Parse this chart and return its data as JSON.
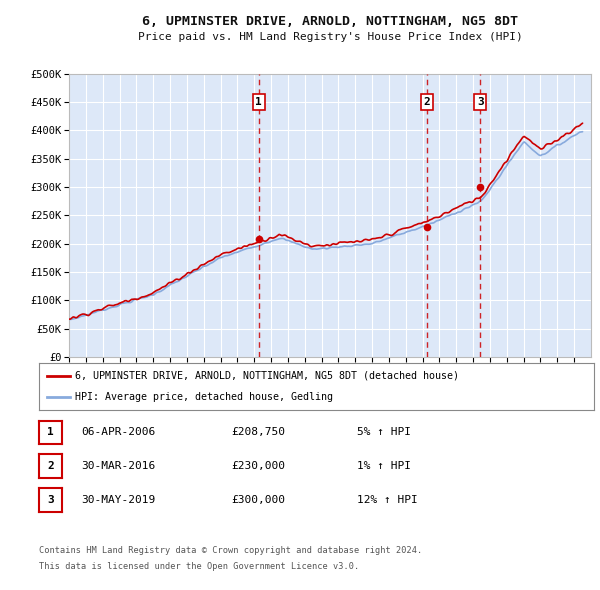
{
  "title": "6, UPMINSTER DRIVE, ARNOLD, NOTTINGHAM, NG5 8DT",
  "subtitle": "Price paid vs. HM Land Registry's House Price Index (HPI)",
  "background_color": "#dde8f8",
  "fig_bg_color": "#ffffff",
  "red_color": "#cc0000",
  "blue_color": "#88aadd",
  "grid_color": "#ffffff",
  "ylim": [
    0,
    500000
  ],
  "yticks": [
    0,
    50000,
    100000,
    150000,
    200000,
    250000,
    300000,
    350000,
    400000,
    450000,
    500000
  ],
  "ytick_labels": [
    "£0",
    "£50K",
    "£100K",
    "£150K",
    "£200K",
    "£250K",
    "£300K",
    "£350K",
    "£400K",
    "£450K",
    "£500K"
  ],
  "transactions": [
    {
      "num": 1,
      "date": "06-APR-2006",
      "price": 208750,
      "year": 2006.27,
      "hpi_pct": "5%"
    },
    {
      "num": 2,
      "date": "30-MAR-2016",
      "price": 230000,
      "year": 2016.25,
      "hpi_pct": "1%"
    },
    {
      "num": 3,
      "date": "30-MAY-2019",
      "price": 300000,
      "year": 2019.42,
      "hpi_pct": "12%"
    }
  ],
  "legend_line1": "6, UPMINSTER DRIVE, ARNOLD, NOTTINGHAM, NG5 8DT (detached house)",
  "legend_line2": "HPI: Average price, detached house, Gedling",
  "footer1": "Contains HM Land Registry data © Crown copyright and database right 2024.",
  "footer2": "This data is licensed under the Open Government Licence v3.0.",
  "xmin": 1995,
  "xmax": 2026
}
